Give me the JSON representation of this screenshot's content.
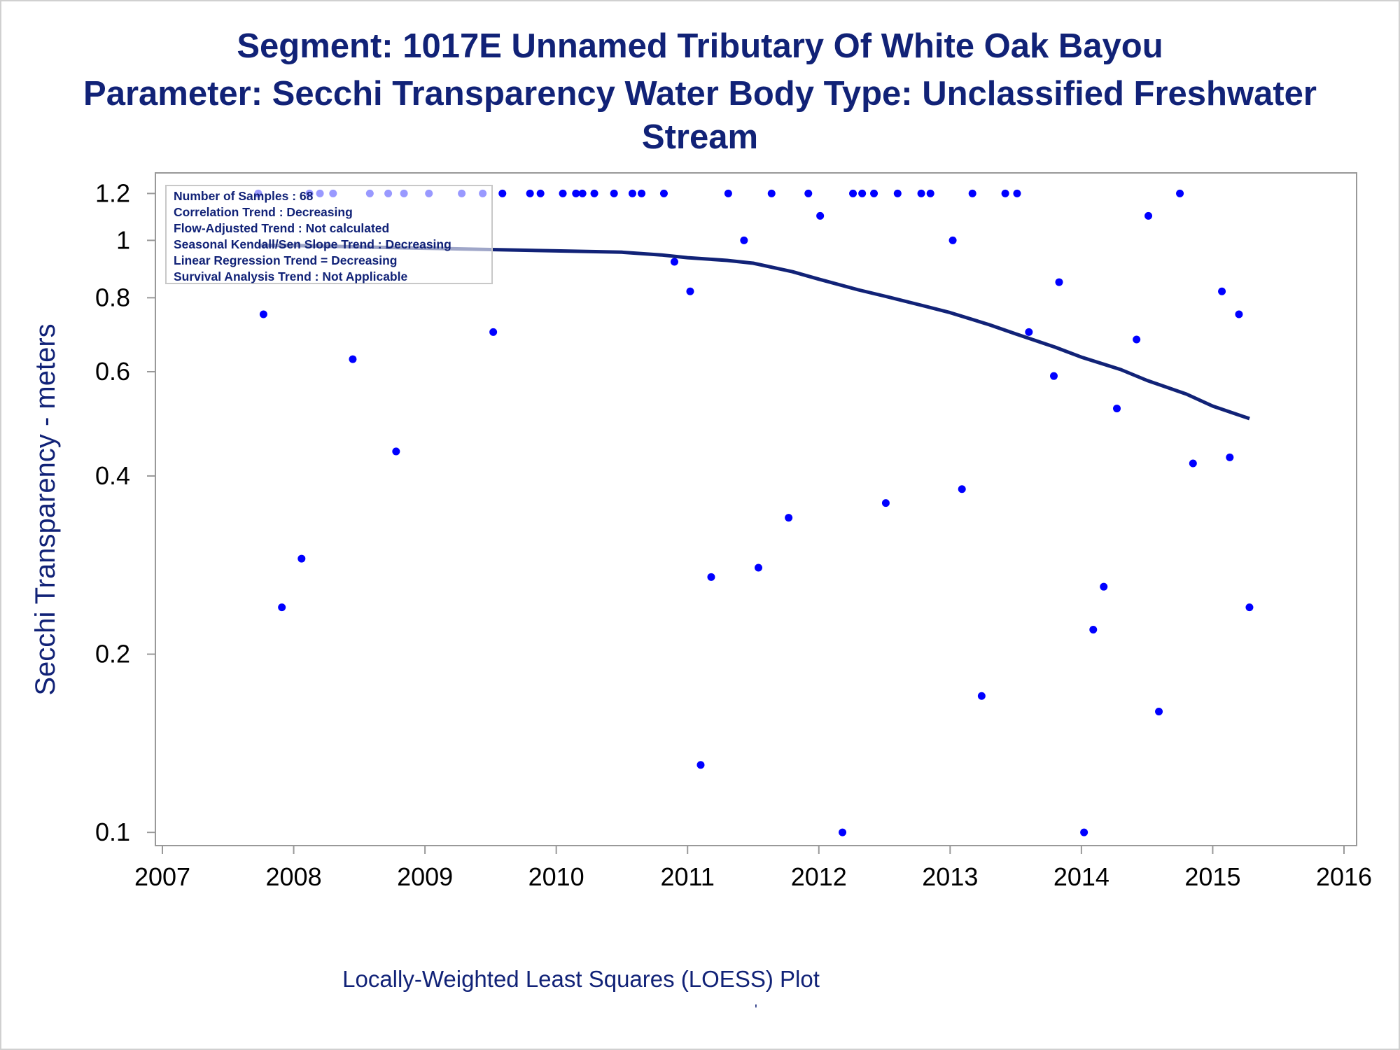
{
  "title": {
    "line1": "Segment: 1017E  Unnamed Tributary Of White Oak Bayou",
    "line2": "Parameter: Secchi Transparency   Water Body Type: Unclassified Freshwater",
    "line3": "Stream"
  },
  "stats_box": [
    "Number of Samples : 68",
    "Correlation Trend : Decreasing",
    "Flow-Adjusted Trend : Not calculated",
    "Seasonal Kendall/Sen Slope Trend : Decreasing",
    "Linear Regression Trend = Decreasing",
    "Survival Analysis Trend : Not Applicable"
  ],
  "footnote": "Locally-Weighted Least Squares (LOESS) Plot",
  "footnote_mark": "'",
  "colors": {
    "title": "#112277",
    "points": "#0000ff",
    "loess": "#112277",
    "frame": "#999999"
  },
  "chart_data": {
    "type": "scatter",
    "xlabel": "",
    "ylabel": "Secchi Transparency - meters",
    "y_scale": "log",
    "xlim": [
      2007,
      2016
    ],
    "ylim": [
      0.095,
      1.3
    ],
    "x_ticks": [
      2007,
      2008,
      2009,
      2010,
      2011,
      2012,
      2013,
      2014,
      2015,
      2016
    ],
    "y_ticks": [
      0.1,
      0.2,
      0.4,
      0.6,
      0.8,
      1,
      1.2
    ],
    "grid": false,
    "points": [
      [
        2007.73,
        1.2
      ],
      [
        2007.77,
        0.75
      ],
      [
        2007.91,
        0.24
      ],
      [
        2008.06,
        0.29
      ],
      [
        2008.12,
        1.2
      ],
      [
        2008.2,
        1.2
      ],
      [
        2008.3,
        1.2
      ],
      [
        2008.45,
        0.63
      ],
      [
        2008.58,
        1.2
      ],
      [
        2008.72,
        1.2
      ],
      [
        2008.78,
        0.44
      ],
      [
        2008.84,
        1.2
      ],
      [
        2009.03,
        1.2
      ],
      [
        2009.28,
        1.2
      ],
      [
        2009.44,
        1.2
      ],
      [
        2009.52,
        0.7
      ],
      [
        2009.59,
        1.2
      ],
      [
        2009.8,
        1.2
      ],
      [
        2009.88,
        1.2
      ],
      [
        2010.05,
        1.2
      ],
      [
        2010.15,
        1.2
      ],
      [
        2010.2,
        1.2
      ],
      [
        2010.29,
        1.2
      ],
      [
        2010.44,
        1.2
      ],
      [
        2010.58,
        1.2
      ],
      [
        2010.65,
        1.2
      ],
      [
        2010.82,
        1.2
      ],
      [
        2010.9,
        0.92
      ],
      [
        2011.02,
        0.82
      ],
      [
        2011.1,
        0.13
      ],
      [
        2011.18,
        0.27
      ],
      [
        2011.31,
        1.2
      ],
      [
        2011.43,
        1.0
      ],
      [
        2011.54,
        0.28
      ],
      [
        2011.64,
        1.2
      ],
      [
        2011.77,
        0.34
      ],
      [
        2011.92,
        1.2
      ],
      [
        2012.01,
        1.1
      ],
      [
        2012.18,
        0.1
      ],
      [
        2012.26,
        1.2
      ],
      [
        2012.33,
        1.2
      ],
      [
        2012.42,
        1.2
      ],
      [
        2012.51,
        0.36
      ],
      [
        2012.6,
        1.2
      ],
      [
        2012.78,
        1.2
      ],
      [
        2012.85,
        1.2
      ],
      [
        2013.02,
        1.0
      ],
      [
        2013.09,
        0.38
      ],
      [
        2013.17,
        1.2
      ],
      [
        2013.24,
        0.17
      ],
      [
        2013.42,
        1.2
      ],
      [
        2013.51,
        1.2
      ],
      [
        2013.6,
        0.7
      ],
      [
        2013.79,
        0.59
      ],
      [
        2013.83,
        0.85
      ],
      [
        2014.02,
        0.1
      ],
      [
        2014.09,
        0.22
      ],
      [
        2014.17,
        0.26
      ],
      [
        2014.27,
        0.52
      ],
      [
        2014.42,
        0.68
      ],
      [
        2014.51,
        1.1
      ],
      [
        2014.59,
        0.16
      ],
      [
        2014.75,
        1.2
      ],
      [
        2014.85,
        0.42
      ],
      [
        2015.07,
        0.82
      ],
      [
        2015.13,
        0.43
      ],
      [
        2015.2,
        0.75
      ],
      [
        2015.28,
        0.24
      ]
    ],
    "loess": [
      [
        2007.73,
        0.98
      ],
      [
        2008.0,
        0.98
      ],
      [
        2008.5,
        0.975
      ],
      [
        2009.0,
        0.97
      ],
      [
        2009.5,
        0.965
      ],
      [
        2010.0,
        0.96
      ],
      [
        2010.5,
        0.955
      ],
      [
        2010.8,
        0.945
      ],
      [
        2011.0,
        0.935
      ],
      [
        2011.3,
        0.925
      ],
      [
        2011.5,
        0.915
      ],
      [
        2011.8,
        0.885
      ],
      [
        2012.0,
        0.86
      ],
      [
        2012.3,
        0.825
      ],
      [
        2012.5,
        0.805
      ],
      [
        2012.8,
        0.775
      ],
      [
        2013.0,
        0.755
      ],
      [
        2013.3,
        0.72
      ],
      [
        2013.5,
        0.695
      ],
      [
        2013.8,
        0.66
      ],
      [
        2014.0,
        0.635
      ],
      [
        2014.3,
        0.605
      ],
      [
        2014.5,
        0.58
      ],
      [
        2014.8,
        0.55
      ],
      [
        2015.0,
        0.525
      ],
      [
        2015.28,
        0.5
      ]
    ]
  }
}
